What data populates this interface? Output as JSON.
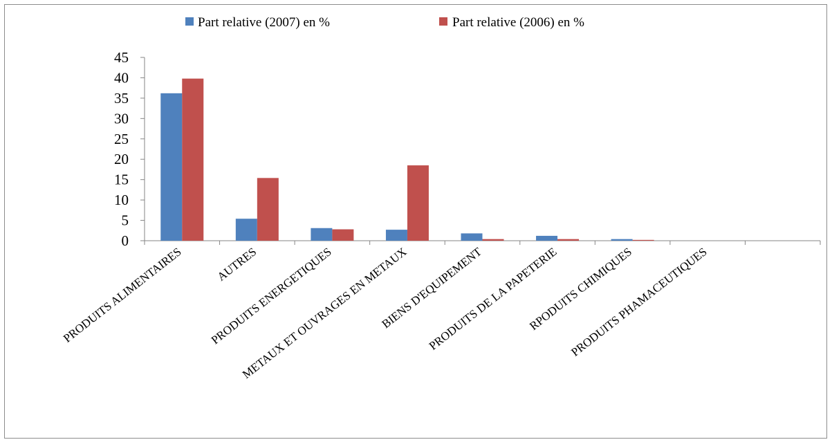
{
  "chart_data": {
    "type": "bar",
    "title": "",
    "xlabel": "",
    "ylabel": "",
    "ylim": [
      0,
      45
    ],
    "yticks": [
      "0",
      "5",
      "10",
      "15",
      "20",
      "25",
      "30",
      "35",
      "40",
      "45"
    ],
    "grid": false,
    "legend_position": "top",
    "categories": [
      "PRODUITS ALIMENTAIRES",
      "AUTRES",
      "PRODUITS ENERGETIQUES",
      "METAUX ET OUVRAGES EN METAUX",
      "BIENS D'EQUIPEMENT",
      "PRODUITS DE LA PAPETERIE",
      "RPODUITS CHIMIQUES",
      "PRODUITS PHAMACEUTIQUES",
      ""
    ],
    "series": [
      {
        "name": "Part relative (2007) en %",
        "color": "#4F81BD",
        "values": [
          36.2,
          5.4,
          3.1,
          2.7,
          1.8,
          1.2,
          0.4,
          0,
          0
        ]
      },
      {
        "name": "Part relative (2006) en %",
        "color": "#C0504D",
        "values": [
          39.8,
          15.4,
          2.8,
          18.5,
          0.4,
          0.4,
          0.2,
          0,
          0
        ]
      }
    ]
  }
}
